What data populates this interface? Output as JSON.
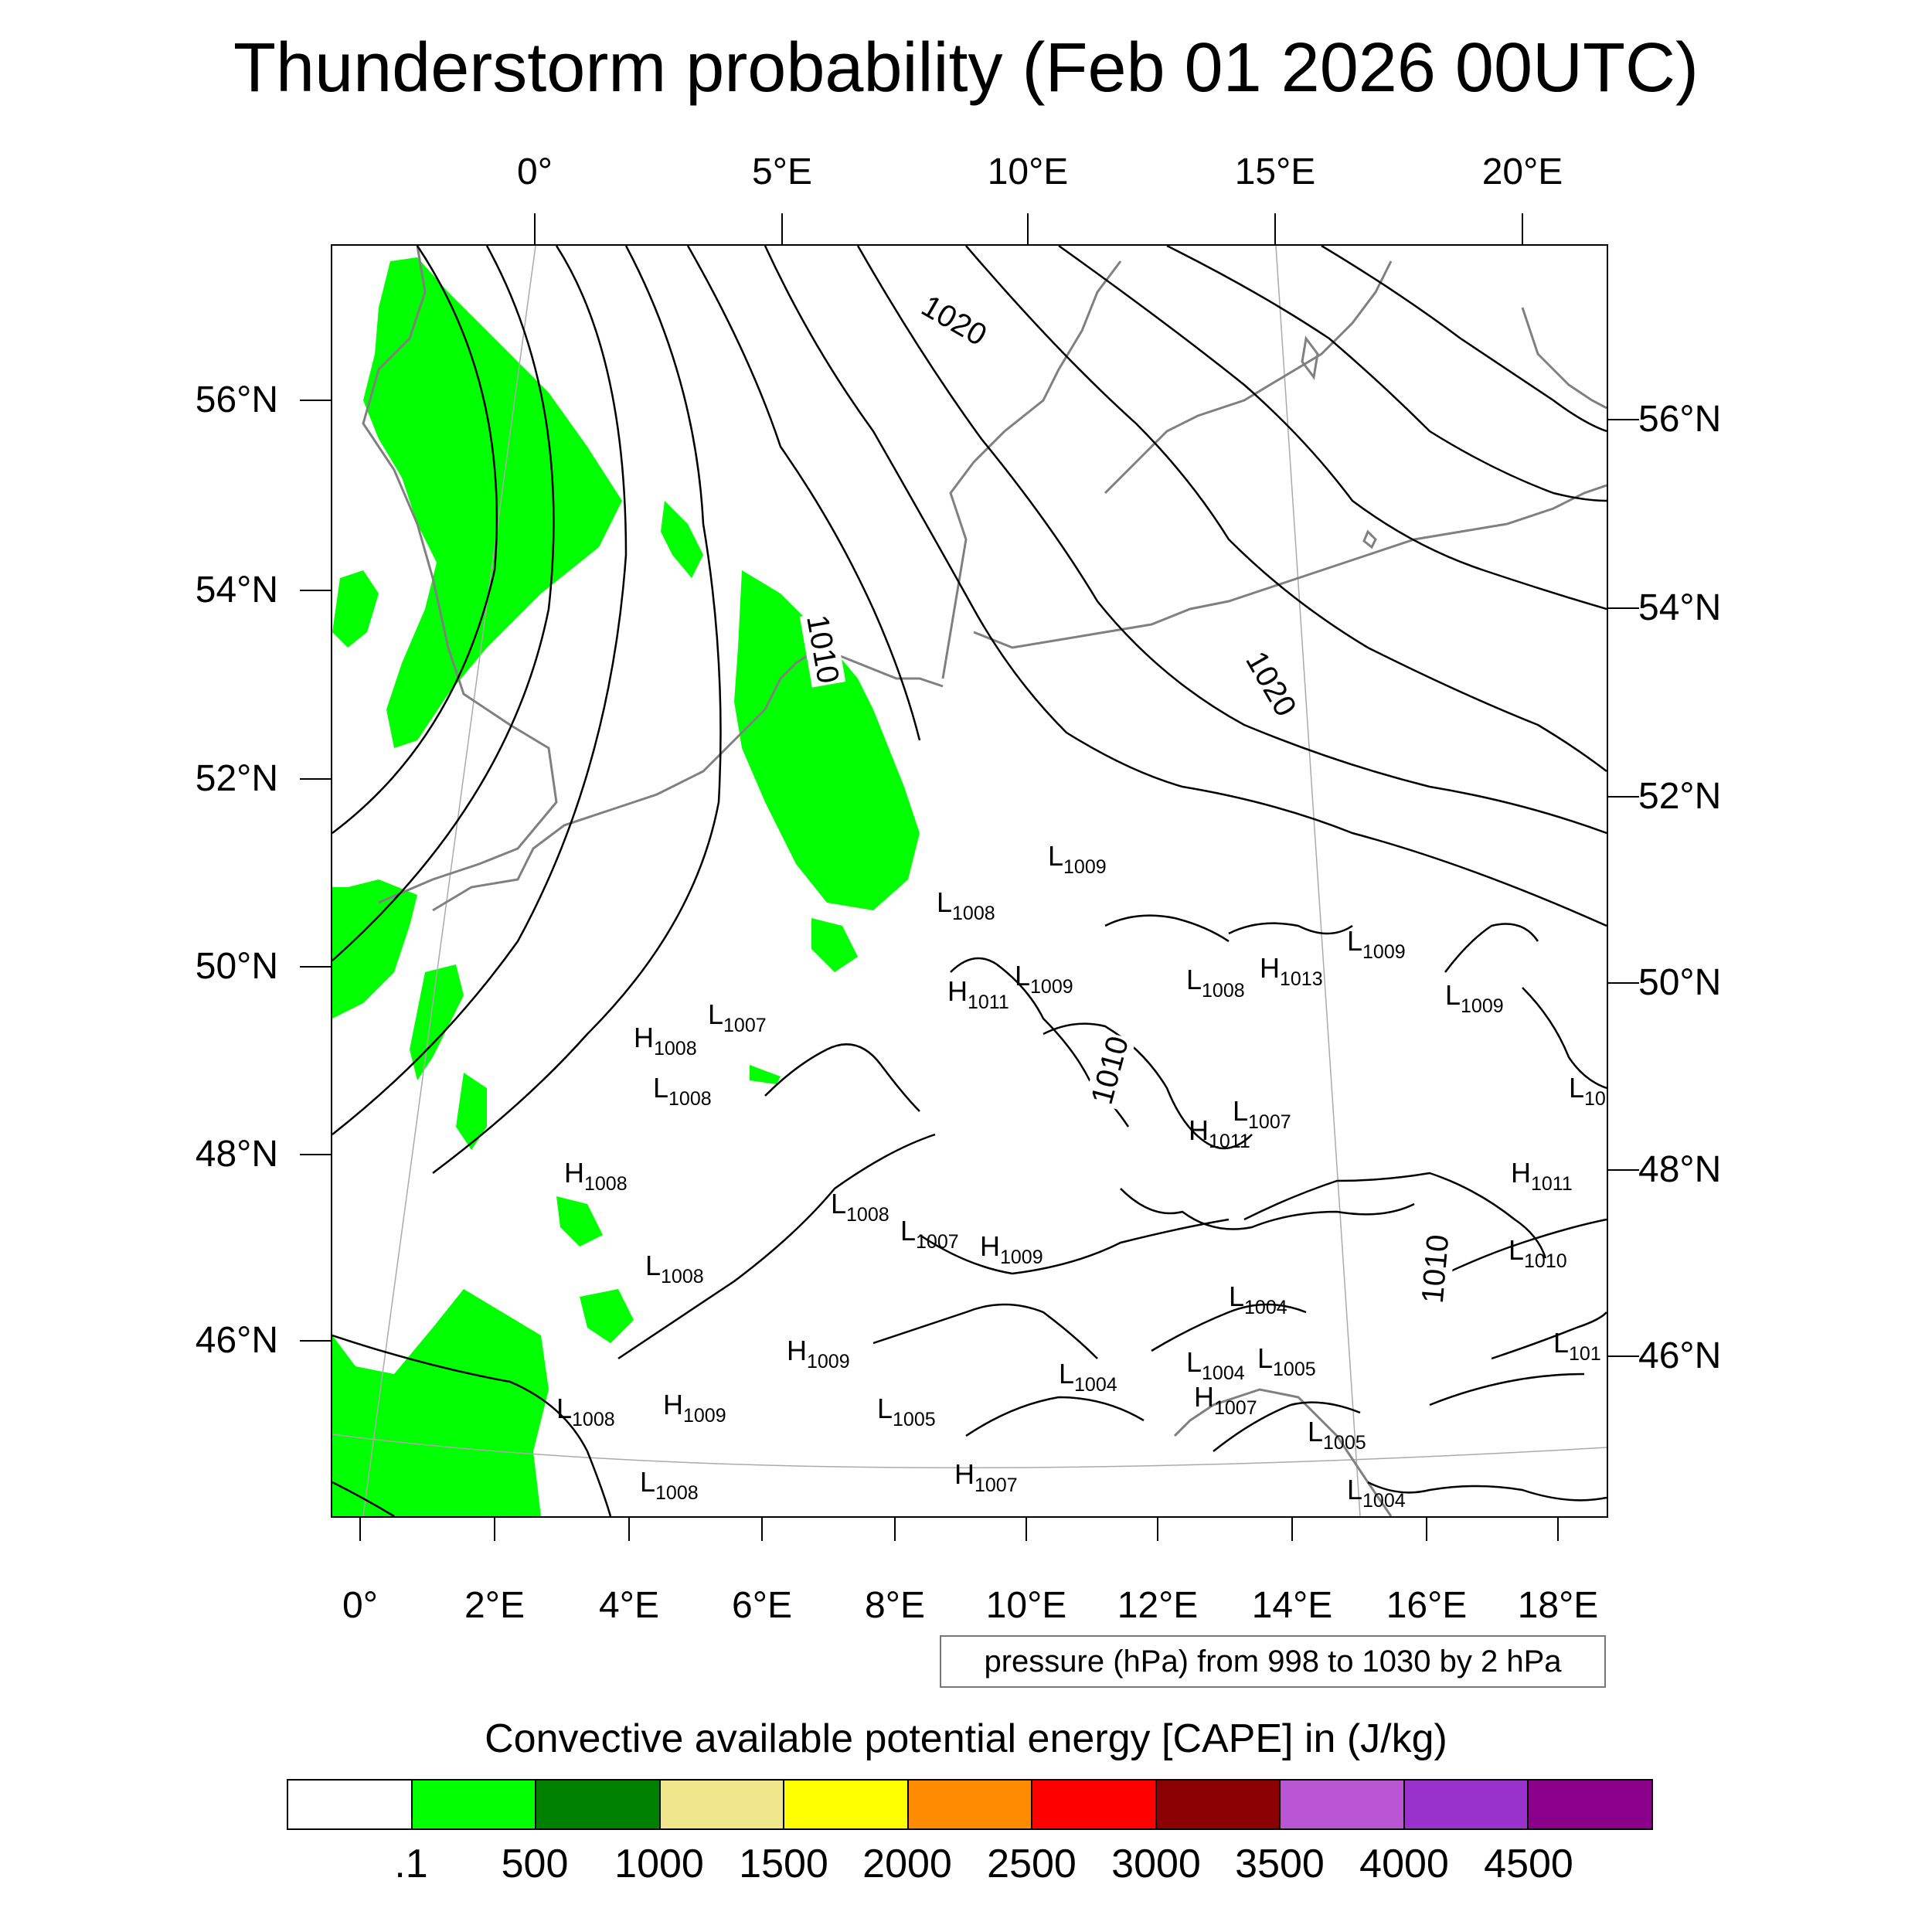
{
  "title": "Thunderstorm probability (Feb 01 2026 00UTC)",
  "top_longitudes": [
    "0°",
    "5°E",
    "10°E",
    "15°E",
    "20°E"
  ],
  "bottom_longitudes": [
    "0°",
    "2°E",
    "4°E",
    "6°E",
    "8°E",
    "10°E",
    "12°E",
    "14°E",
    "16°E",
    "18°E"
  ],
  "left_latitudes": [
    "56°N",
    "54°N",
    "52°N",
    "50°N",
    "48°N",
    "46°N"
  ],
  "right_latitudes": [
    "56°N",
    "54°N",
    "52°N",
    "50°N",
    "48°N",
    "46°N"
  ],
  "contour_note": "pressure (hPa) from 998 to 1030 by 2 hPa",
  "isobar_labels": [
    "1020",
    "1020",
    "1010",
    "1010",
    "1010"
  ],
  "pressure_centers": [
    {
      "type": "L",
      "value": "1009"
    },
    {
      "type": "L",
      "value": "1008"
    },
    {
      "type": "H",
      "value": "1011"
    },
    {
      "type": "L",
      "value": "1009"
    },
    {
      "type": "L",
      "value": "1008"
    },
    {
      "type": "H",
      "value": "1013"
    },
    {
      "type": "L",
      "value": "1009"
    },
    {
      "type": "L",
      "value": "1009"
    },
    {
      "type": "L",
      "value": "1007"
    },
    {
      "type": "H",
      "value": "1008"
    },
    {
      "type": "L",
      "value": "1008"
    },
    {
      "type": "L",
      "value": "1007"
    },
    {
      "type": "H",
      "value": "1011"
    },
    {
      "type": "L",
      "value": "10"
    },
    {
      "type": "H",
      "value": "1008"
    },
    {
      "type": "L",
      "value": "1008"
    },
    {
      "type": "H",
      "value": "1011"
    },
    {
      "type": "L",
      "value": "1007"
    },
    {
      "type": "H",
      "value": "1009"
    },
    {
      "type": "L",
      "value": "1008"
    },
    {
      "type": "L",
      "value": "1010"
    },
    {
      "type": "L",
      "value": "1004"
    },
    {
      "type": "H",
      "value": "1009"
    },
    {
      "type": "L",
      "value": "1004"
    },
    {
      "type": "L",
      "value": "1005"
    },
    {
      "type": "L",
      "value": "1004"
    },
    {
      "type": "L",
      "value": "101"
    },
    {
      "type": "L",
      "value": "1008"
    },
    {
      "type": "H",
      "value": "1009"
    },
    {
      "type": "L",
      "value": "1005"
    },
    {
      "type": "H",
      "value": "1007"
    },
    {
      "type": "L",
      "value": "1005"
    },
    {
      "type": "L",
      "value": "1008"
    },
    {
      "type": "H",
      "value": "1007"
    },
    {
      "type": "L",
      "value": "1004"
    }
  ],
  "colorbar": {
    "title": "Convective available potential energy [CAPE] in (J/kg)",
    "labels": [
      ".1",
      "500",
      "1000",
      "1500",
      "2000",
      "2500",
      "3000",
      "3500",
      "4000",
      "4500"
    ],
    "colors": [
      "#ffffff",
      "#00ff00",
      "#008000",
      "#f0e68c",
      "#ffff00",
      "#ff8c00",
      "#ff0000",
      "#8b0000",
      "#ba55d3",
      "#9932cc",
      "#8b008b"
    ]
  },
  "map_colors": {
    "cape_low": "#00ff00",
    "coastline": "#808080",
    "isobar": "#000000",
    "graticule": "#aaaaaa"
  }
}
